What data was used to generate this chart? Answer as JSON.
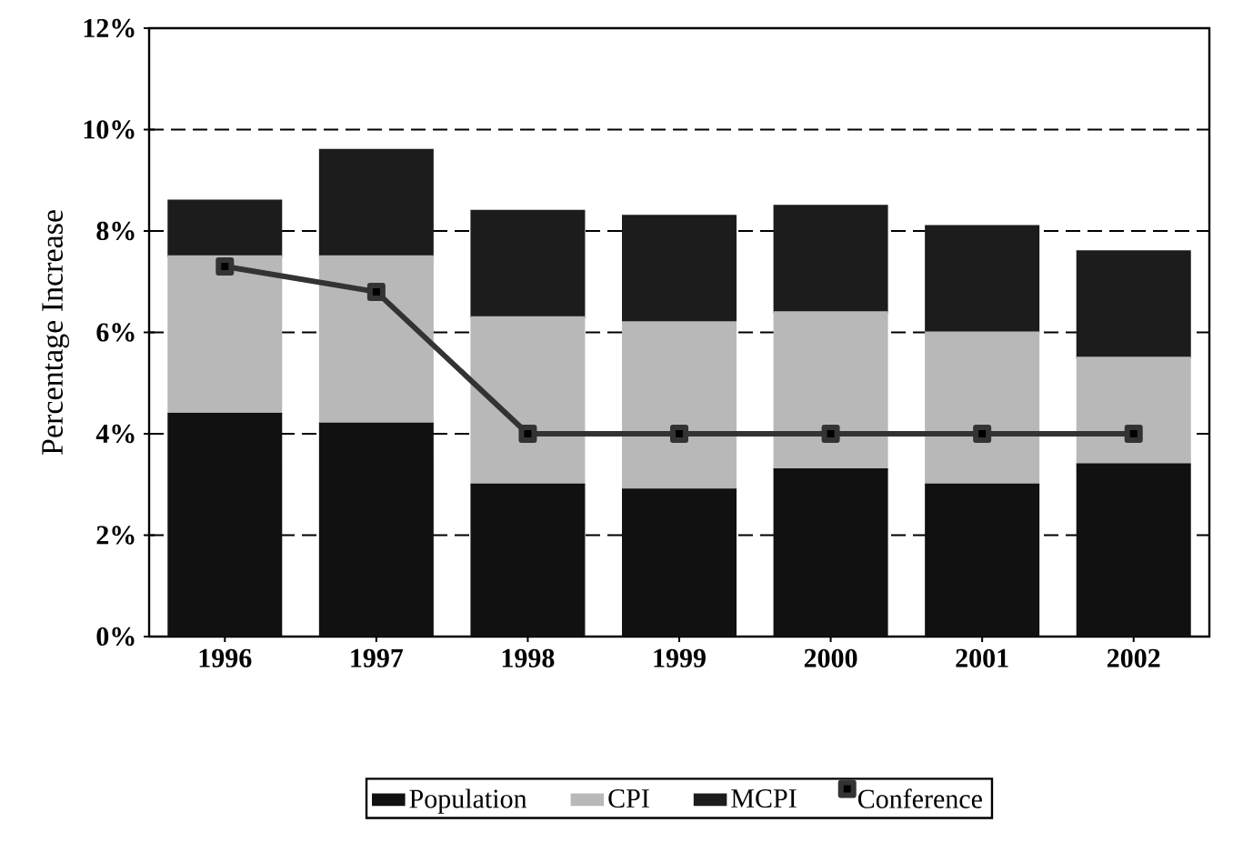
{
  "chart_data": {
    "type": "bar",
    "stacked": true,
    "ylabel": "Percentage Increase",
    "categories": [
      "1996",
      "1997",
      "1998",
      "1999",
      "2000",
      "2001",
      "2002"
    ],
    "series": [
      {
        "name": "Population",
        "color": "#111111",
        "values": [
          4.4,
          4.2,
          3.0,
          2.9,
          3.3,
          3.0,
          3.4
        ]
      },
      {
        "name": "CPI",
        "color": "#b8b8b8",
        "values": [
          3.1,
          3.3,
          3.3,
          3.3,
          3.1,
          3.0,
          2.1
        ]
      },
      {
        "name": "MCPI",
        "color": "#1c1c1c",
        "values": [
          1.1,
          2.1,
          2.1,
          2.1,
          2.1,
          2.1,
          2.1
        ]
      },
      {
        "name": "Conference",
        "type": "line",
        "color": "#333333",
        "values": [
          7.3,
          6.8,
          4.0,
          4.0,
          4.0,
          4.0,
          4.0
        ]
      }
    ],
    "ylim": [
      0,
      12
    ],
    "yticks": [
      {
        "value": 0,
        "label": "0%"
      },
      {
        "value": 2,
        "label": "2%"
      },
      {
        "value": 4,
        "label": "4%"
      },
      {
        "value": 6,
        "label": "6%"
      },
      {
        "value": 8,
        "label": "8%"
      },
      {
        "value": 10,
        "label": "10%"
      },
      {
        "value": 12,
        "label": "12%"
      }
    ],
    "grid": "y",
    "legend": "bottom",
    "marker": "square",
    "line_style": "solid"
  }
}
